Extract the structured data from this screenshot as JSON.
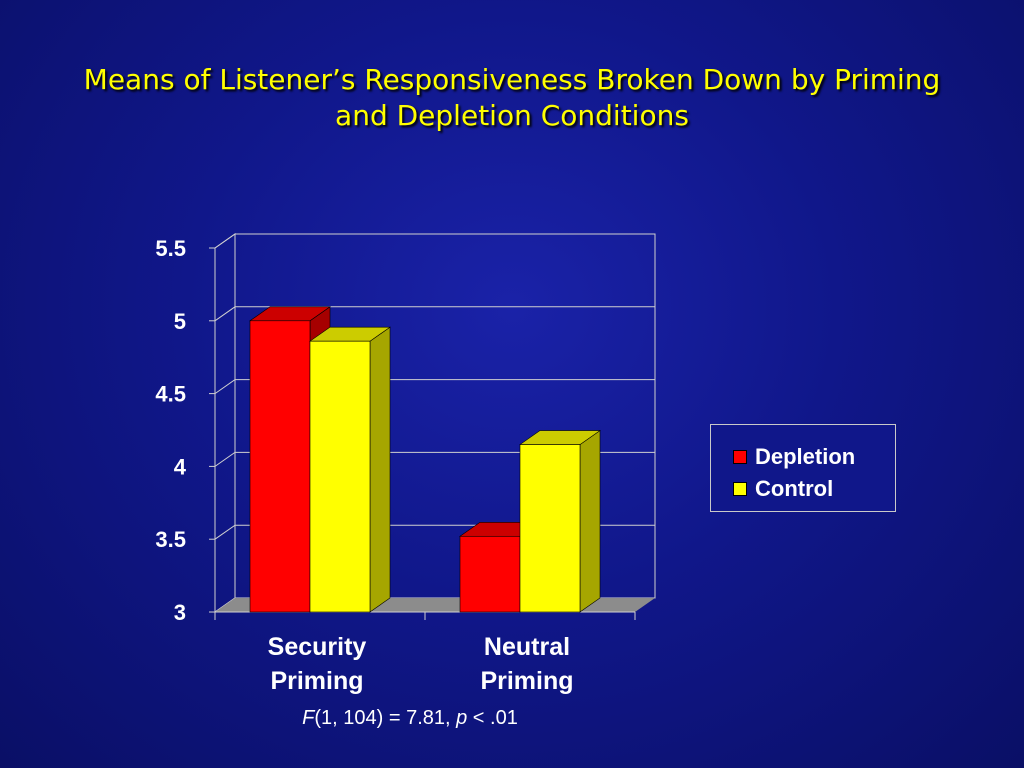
{
  "slide": {
    "title_line1": "Means of Listener’s Responsiveness Broken Down by Priming",
    "title_line2": "and Depletion Conditions",
    "footnote": {
      "f_symbol": "F",
      "f_args": "(1, 104) = 7.81, ",
      "p_symbol": "p",
      "p_text": " < .01"
    }
  },
  "colors": {
    "background": "#10178a",
    "title": "#ffff00",
    "depletion": "#ff0000",
    "control": "#ffff00",
    "floor": "#8c8c8c",
    "grid": "#d0d0d0"
  },
  "chart_data": {
    "type": "bar",
    "title": "Means of Listener’s Responsiveness Broken Down by Priming and Depletion Conditions",
    "categories": [
      "Security Priming",
      "Neutral Priming"
    ],
    "category_lines": [
      [
        "Security",
        "Priming"
      ],
      [
        "Neutral",
        "Priming"
      ]
    ],
    "series": [
      {
        "name": "Depletion",
        "values": [
          5.0,
          3.52
        ]
      },
      {
        "name": "Control",
        "values": [
          4.86,
          4.15
        ]
      }
    ],
    "ylim": [
      3,
      5.5
    ],
    "yticks": [
      "3",
      "3.5",
      "4",
      "4.5",
      "5",
      "5.5"
    ],
    "grid": true,
    "legend_position": "right",
    "style": "3d-clustered-column"
  }
}
